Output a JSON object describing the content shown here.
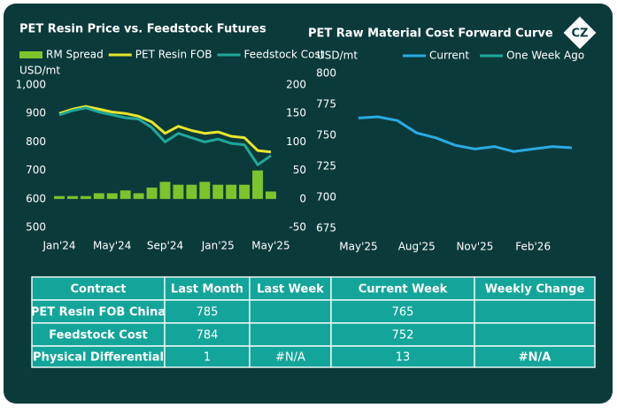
{
  "logo": "CZ",
  "chart_data": [
    {
      "type": "combo",
      "title": "PET Resin Price vs. Feedstock Futures",
      "ylabel": "USD/mt",
      "x": [
        "2024-01",
        "2024-02",
        "2024-03",
        "2024-04",
        "2024-05",
        "2024-06",
        "2024-07",
        "2024-08",
        "2024-09",
        "2024-10",
        "2024-11",
        "2024-12",
        "2025-01",
        "2025-02",
        "2025-03",
        "2025-04",
        "2025-05"
      ],
      "xlim": [
        "2024-01",
        "2025-05"
      ],
      "xticks": [
        {
          "value": "2024-01",
          "label": "Jan'24"
        },
        {
          "value": "2024-05",
          "label": "May'24"
        },
        {
          "value": "2024-09",
          "label": "Sep'24"
        },
        {
          "value": "2025-01",
          "label": "Jan'25"
        },
        {
          "value": "2025-05",
          "label": "May'25"
        }
      ],
      "ylim": [
        500,
        1000
      ],
      "yticks": [
        500,
        600,
        700,
        800,
        900,
        {
          "value": 1000,
          "label": "1,000"
        }
      ],
      "y2lim": [
        -50,
        200
      ],
      "y2ticks": [
        -50,
        0,
        50,
        100,
        150,
        200
      ],
      "series": [
        {
          "name": "RM Spread",
          "color": "#7cc42c",
          "kind": "bar",
          "axis": "y2",
          "values": [
            5,
            5,
            5,
            10,
            10,
            15,
            10,
            20,
            30,
            25,
            25,
            30,
            25,
            25,
            25,
            50,
            13
          ]
        },
        {
          "name": "PET Resin FOB",
          "color": "#e8e62a",
          "kind": "line",
          "values": [
            900,
            915,
            925,
            915,
            905,
            900,
            890,
            870,
            830,
            855,
            840,
            830,
            835,
            820,
            815,
            770,
            765
          ]
        },
        {
          "name": "Feedstock Cost",
          "color": "#1fa89a",
          "kind": "line",
          "values": [
            895,
            910,
            920,
            905,
            895,
            885,
            880,
            850,
            800,
            830,
            815,
            800,
            810,
            795,
            790,
            720,
            752
          ]
        }
      ]
    },
    {
      "type": "line",
      "title": "PET Raw Material Cost Forward Curve",
      "ylabel": "USD/mt",
      "x": [
        "2025-05",
        "2025-06",
        "2025-07",
        "2025-08",
        "2025-09",
        "2025-10",
        "2025-11",
        "2025-12",
        "2026-01",
        "2026-02",
        "2026-03",
        "2026-04"
      ],
      "xlim": [
        "2025-05",
        "2026-04"
      ],
      "xticks": [
        {
          "value": "2025-05",
          "label": "May'25"
        },
        {
          "value": "2025-08",
          "label": "Aug'25"
        },
        {
          "value": "2025-11",
          "label": "Nov'25"
        },
        {
          "value": "2026-02",
          "label": "Feb'26"
        }
      ],
      "ylim": [
        675,
        800
      ],
      "yticks": [
        675,
        700,
        725,
        750,
        775,
        800
      ],
      "series": [
        {
          "name": "Current",
          "color": "#29abe2",
          "values": [
            764,
            765,
            762,
            752,
            748,
            742,
            739,
            741,
            737,
            739,
            741,
            740
          ]
        },
        {
          "name": "One Week Ago",
          "color": "#1fa89a",
          "values": [
            null,
            null,
            null,
            null,
            null,
            null,
            null,
            null,
            null,
            null,
            null,
            null
          ]
        }
      ]
    }
  ],
  "table": {
    "header": [
      "Contract",
      "Last Month",
      "Last Week",
      "Current Week",
      "Weekly Change"
    ],
    "rows": [
      [
        "PET Resin FOB China",
        785,
        null,
        765,
        null
      ],
      [
        "Feedstock Cost",
        784,
        null,
        752,
        null
      ],
      [
        "Physical Differential",
        1,
        "#N/A",
        13,
        "#N/A"
      ]
    ]
  }
}
